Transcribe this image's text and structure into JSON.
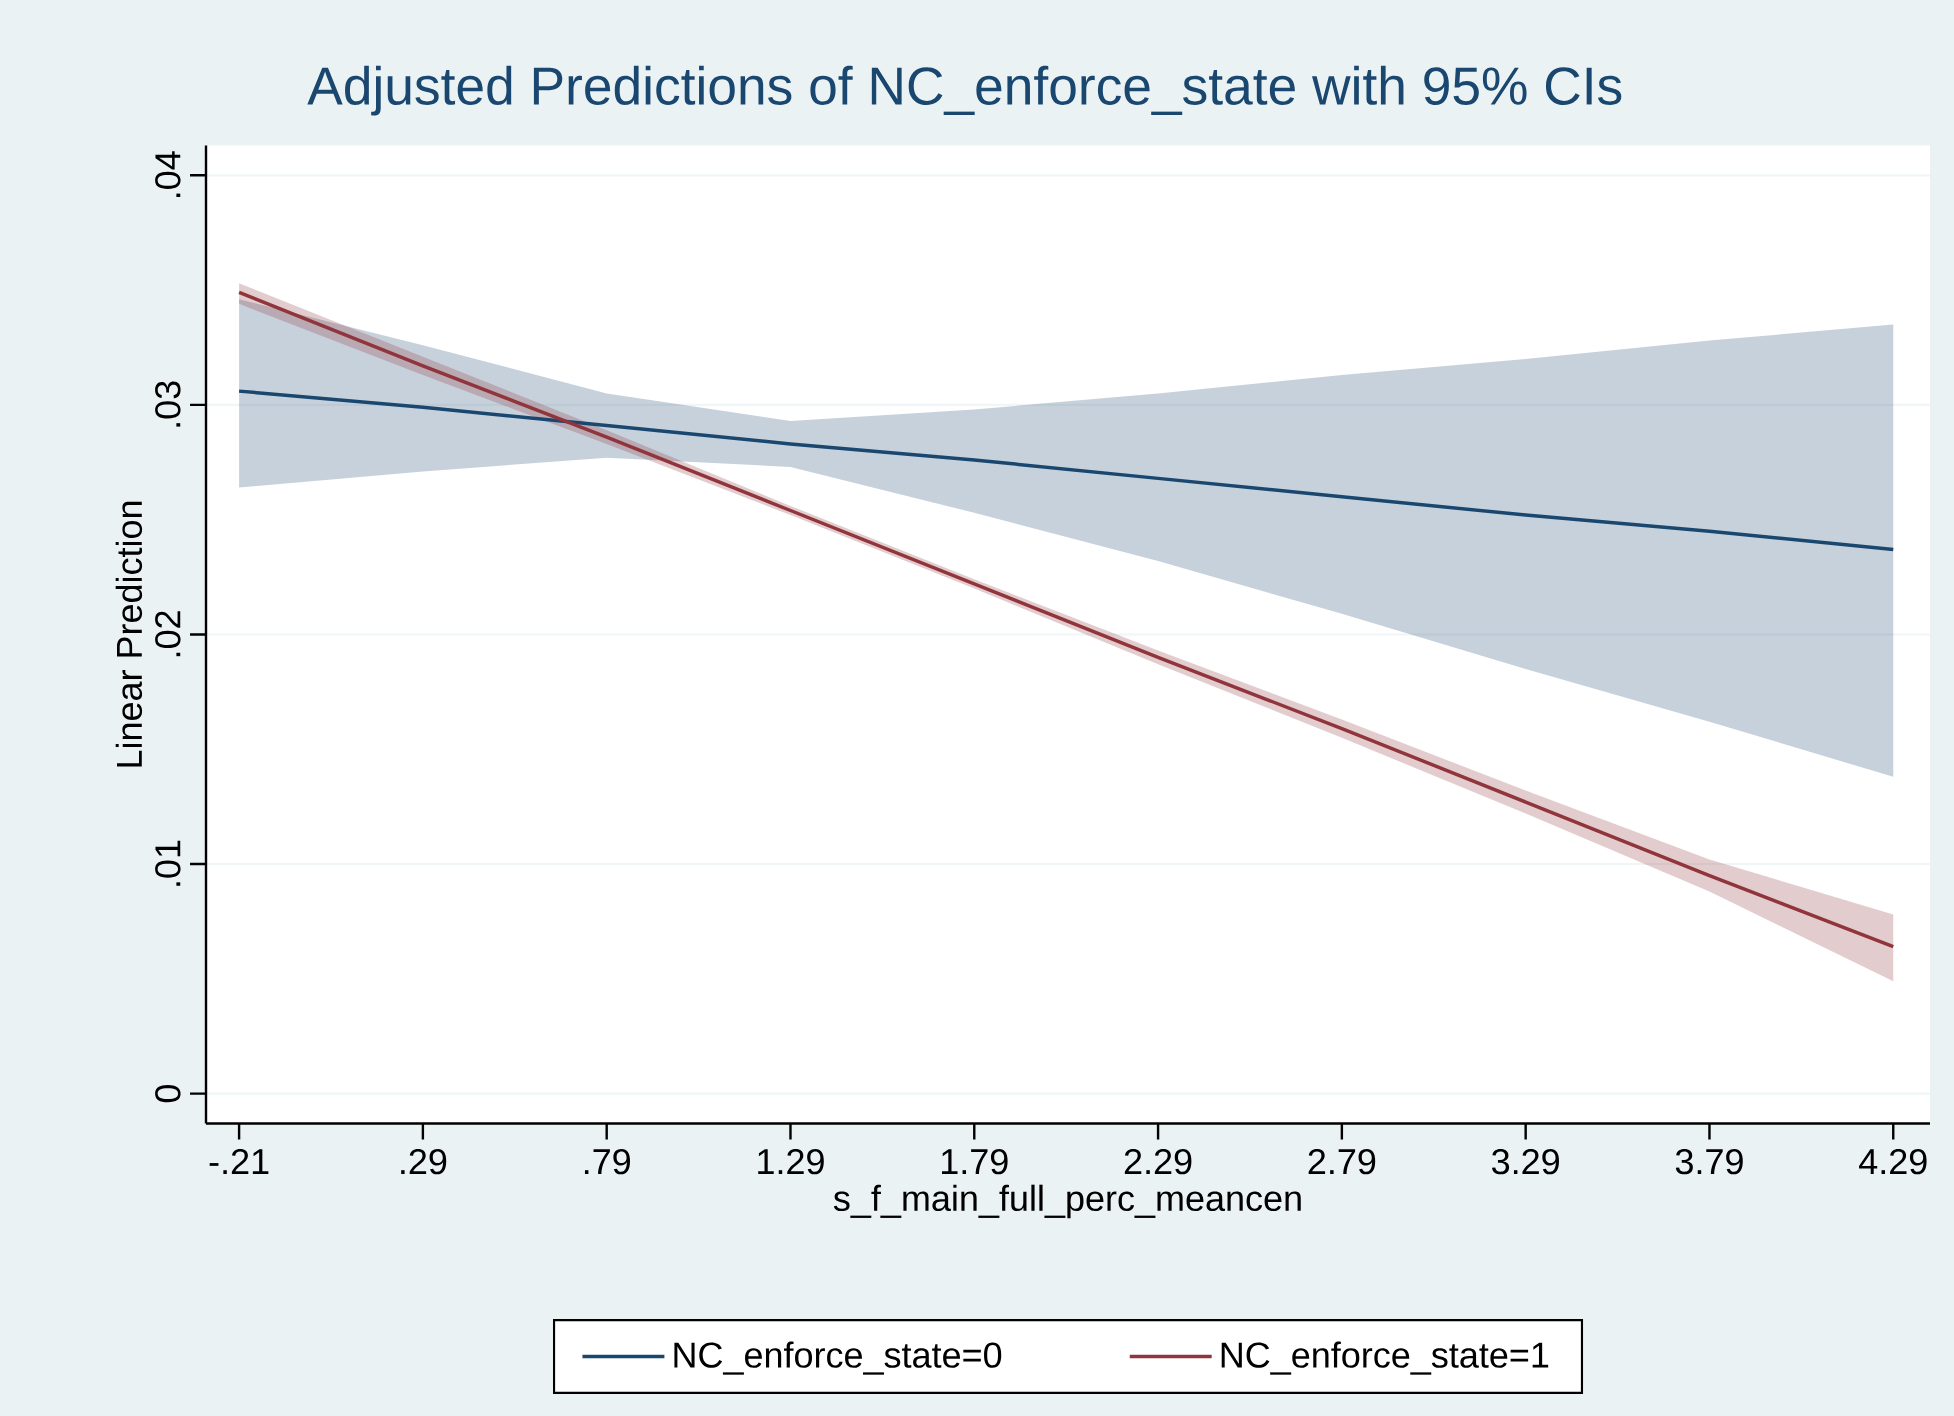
{
  "chart_data": {
    "type": "line",
    "title": "Adjusted Predictions of NC_enforce_state with 95% CIs",
    "xlabel": "s_f_main_full_perc_meancen",
    "ylabel": "Linear Prediction",
    "x": [
      -0.21,
      0.29,
      0.79,
      1.29,
      1.79,
      2.29,
      2.79,
      3.29,
      3.79,
      4.29
    ],
    "series": [
      {
        "name": "NC_enforce_state=0",
        "color": "#1a476f",
        "values": [
          0.0306,
          0.0299,
          0.0291,
          0.0283,
          0.0276,
          0.0268,
          0.026,
          0.0252,
          0.0245,
          0.0237
        ],
        "lower": [
          0.0264,
          0.0271,
          0.0277,
          0.0273,
          0.0253,
          0.0232,
          0.0209,
          0.0185,
          0.0162,
          0.0138
        ],
        "upper": [
          0.0346,
          0.0326,
          0.0305,
          0.0293,
          0.0298,
          0.0305,
          0.0313,
          0.032,
          0.0328,
          0.0335
        ]
      },
      {
        "name": "NC_enforce_state=1",
        "color": "#90353b",
        "values": [
          0.0349,
          0.0317,
          0.0286,
          0.0254,
          0.0222,
          0.019,
          0.0159,
          0.0127,
          0.0095,
          0.0064
        ],
        "lower": [
          0.0344,
          0.0313,
          0.0283,
          0.0252,
          0.022,
          0.0187,
          0.0155,
          0.0122,
          0.0088,
          0.0049
        ],
        "upper": [
          0.0353,
          0.0321,
          0.0289,
          0.0256,
          0.0224,
          0.0193,
          0.0163,
          0.0132,
          0.0102,
          0.0078
        ]
      }
    ],
    "xlim": [
      -0.3,
      4.39
    ],
    "ylim": [
      -0.0013,
      0.0413
    ],
    "xticks": [
      {
        "value": -0.21,
        "label": "-.21"
      },
      {
        "value": 0.29,
        "label": ".29"
      },
      {
        "value": 0.79,
        "label": ".79"
      },
      1.29,
      1.79,
      2.29,
      2.79,
      3.29,
      3.79,
      4.29
    ],
    "yticks": [
      0,
      {
        "value": 0.01,
        "label": ".01"
      },
      {
        "value": 0.02,
        "label": ".02"
      },
      {
        "value": 0.03,
        "label": ".03"
      },
      {
        "value": 0.04,
        "label": ".04"
      }
    ],
    "grid": "y",
    "legend": "bottom",
    "marker": "none",
    "line_style": "solid"
  }
}
